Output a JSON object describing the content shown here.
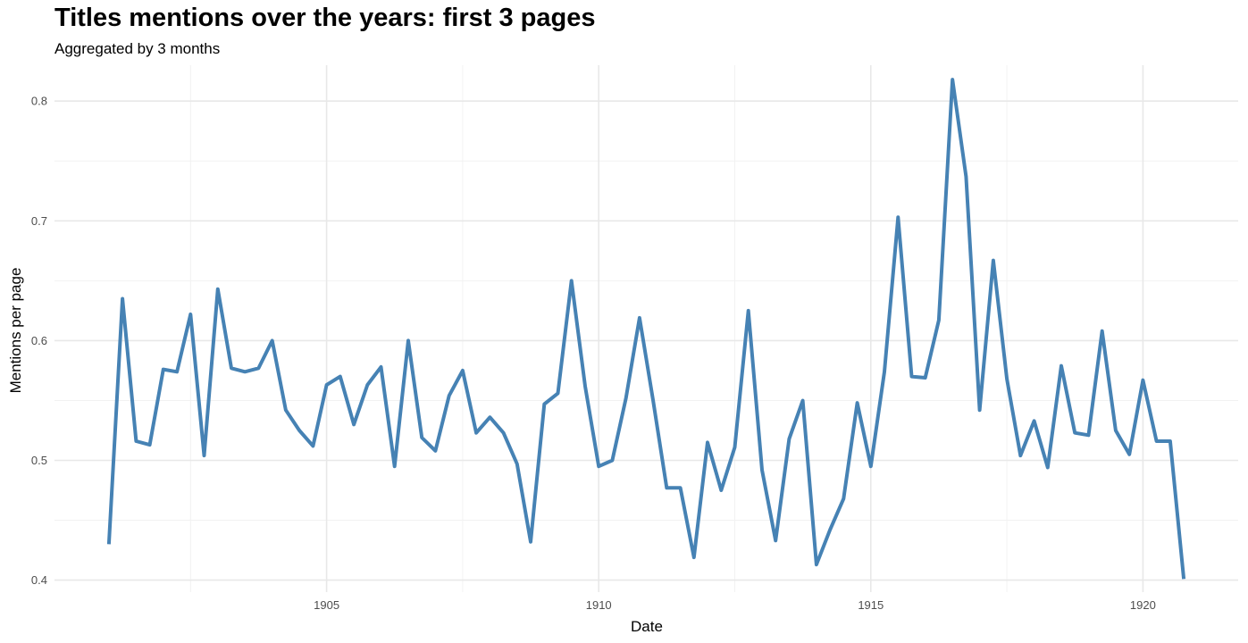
{
  "chart_data": {
    "type": "line",
    "title": "Titles mentions over the years: first 3 pages",
    "subtitle": "Aggregated by 3 months",
    "xlabel": "Date",
    "ylabel": "Mentions per page",
    "xlim": [
      1900.0,
      1921.75
    ],
    "ylim": [
      0.39,
      0.83
    ],
    "x_ticks": [
      {
        "value": 1905,
        "label": "1905"
      },
      {
        "value": 1910,
        "label": "1910"
      },
      {
        "value": 1915,
        "label": "1915"
      },
      {
        "value": 1920,
        "label": "1920"
      }
    ],
    "y_ticks": [
      {
        "value": 0.4,
        "label": "0.4"
      },
      {
        "value": 0.5,
        "label": "0.5"
      },
      {
        "value": 0.6,
        "label": "0.6"
      },
      {
        "value": 0.7,
        "label": "0.7"
      },
      {
        "value": 0.8,
        "label": "0.8"
      }
    ],
    "grid": true,
    "line_color": "#4682B4",
    "series": [
      {
        "x": [
          "1901-01",
          "1901-04",
          "1901-07",
          "1901-10",
          "1902-01",
          "1902-04",
          "1902-07",
          "1902-10",
          "1903-01",
          "1903-04",
          "1903-07",
          "1903-10",
          "1904-01",
          "1904-04",
          "1904-07",
          "1904-10",
          "1905-01",
          "1905-04",
          "1905-07",
          "1905-10",
          "1906-01",
          "1906-04",
          "1906-07",
          "1906-10",
          "1907-01",
          "1907-04",
          "1907-07",
          "1907-10",
          "1908-01",
          "1908-04",
          "1908-07",
          "1908-10",
          "1909-01",
          "1909-04",
          "1909-07",
          "1909-10",
          "1910-01",
          "1910-04",
          "1910-07",
          "1910-10",
          "1911-01",
          "1911-04",
          "1911-07",
          "1911-10",
          "1912-01",
          "1912-04",
          "1912-07",
          "1912-10",
          "1913-01",
          "1913-04",
          "1913-07",
          "1913-10",
          "1914-01",
          "1914-04",
          "1914-07",
          "1914-10",
          "1915-01",
          "1915-04",
          "1915-07",
          "1915-10",
          "1916-01",
          "1916-04",
          "1916-07",
          "1916-10",
          "1917-01",
          "1917-04",
          "1917-07",
          "1917-10",
          "1918-01",
          "1918-04",
          "1918-07",
          "1918-10",
          "1919-01",
          "1919-04",
          "1919-07",
          "1919-10",
          "1920-01",
          "1920-04",
          "1920-07",
          "1920-10"
        ],
        "values": [
          0.43,
          0.635,
          0.516,
          0.513,
          0.576,
          0.574,
          0.622,
          0.504,
          0.643,
          0.577,
          0.574,
          0.577,
          0.6,
          0.542,
          0.525,
          0.512,
          0.563,
          0.57,
          0.53,
          0.563,
          0.578,
          0.495,
          0.6,
          0.519,
          0.508,
          0.554,
          0.575,
          0.523,
          0.536,
          0.523,
          0.497,
          0.432,
          0.547,
          0.556,
          0.65,
          0.562,
          0.495,
          0.5,
          0.552,
          0.619,
          0.55,
          0.477,
          0.477,
          0.419,
          0.515,
          0.475,
          0.511,
          0.625,
          0.492,
          0.433,
          0.518,
          0.55,
          0.413,
          0.442,
          0.468,
          0.548,
          0.495,
          0.574,
          0.703,
          0.57,
          0.569,
          0.617,
          0.818,
          0.737,
          0.542,
          0.667,
          0.568,
          0.504,
          0.533,
          0.494,
          0.579,
          0.523,
          0.521,
          0.608,
          0.525,
          0.505,
          0.567,
          0.516,
          0.516,
          0.401
        ]
      }
    ]
  }
}
